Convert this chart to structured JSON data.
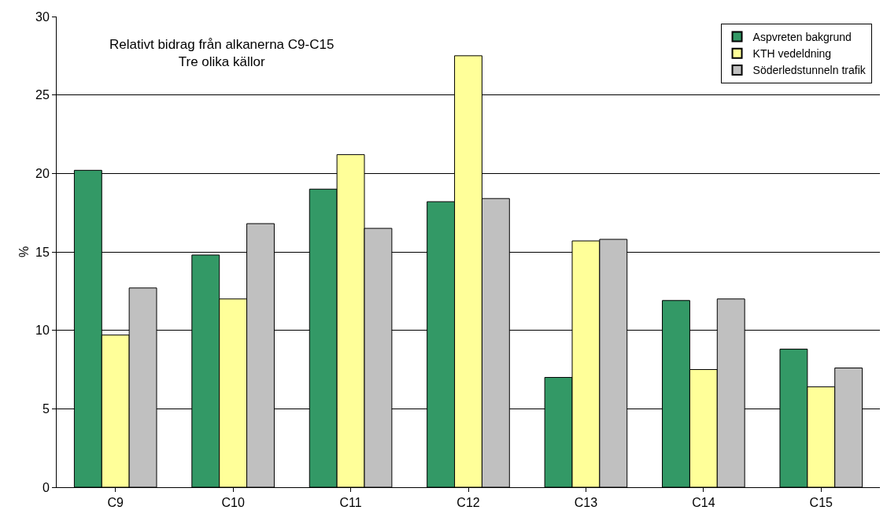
{
  "chart_data": {
    "type": "bar",
    "title": "Relativt bidrag från alkanerna C9-C15",
    "subtitle": "Tre olika källor",
    "ylabel": "%",
    "categories": [
      "C9",
      "C10",
      "C11",
      "C12",
      "C13",
      "C14",
      "C15"
    ],
    "series": [
      {
        "name": "Aspvreten bakgrund",
        "color": "#339966",
        "values": [
          20.2,
          14.8,
          19.0,
          18.2,
          7.0,
          11.9,
          8.8
        ]
      },
      {
        "name": "KTH vedeldning",
        "color": "#ffff99",
        "values": [
          9.7,
          12.0,
          21.2,
          27.5,
          15.7,
          7.5,
          6.4
        ]
      },
      {
        "name": "Söderledstunneln trafik",
        "color": "#c0c0c0",
        "values": [
          12.7,
          16.8,
          16.5,
          18.4,
          15.8,
          12.0,
          7.6
        ]
      }
    ],
    "ylim": [
      0,
      30
    ],
    "yticks": [
      0,
      5,
      10,
      15,
      20,
      25,
      30
    ],
    "grid": "y",
    "legend": "top right"
  }
}
